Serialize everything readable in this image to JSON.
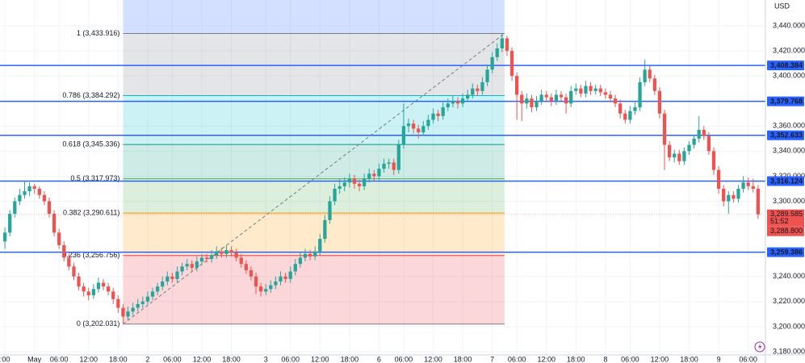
{
  "chart_data": {
    "type": "candlestick",
    "currency": "USD",
    "up_color": "#26a69a",
    "down_color": "#ef5350",
    "grid": true,
    "ylim": [
      3177.4,
      3460.6
    ],
    "yticks": [
      {
        "value": 3440,
        "label": "3,440.000"
      },
      {
        "value": 3420,
        "label": "3,420.000"
      },
      {
        "value": 3400,
        "label": "3,400.000"
      },
      {
        "value": 3360,
        "label": "3,360.000"
      },
      {
        "value": 3340,
        "label": "3,340.000"
      },
      {
        "value": 3320,
        "label": "3,320.000"
      },
      {
        "value": 3300,
        "label": "3,300.000"
      },
      {
        "value": 3240,
        "label": "3,240.000"
      },
      {
        "value": 3220,
        "label": "3,220.000"
      },
      {
        "value": 3200,
        "label": "3,200.000"
      },
      {
        "value": 3180,
        "label": "3,180.000"
      }
    ],
    "xlim": [
      -1,
      154.5
    ],
    "xticks": [
      {
        "value": 0,
        "label": ":00"
      },
      {
        "value": 6,
        "label": "May"
      },
      {
        "value": 11,
        "label": "06:00"
      },
      {
        "value": 17,
        "label": "12:00"
      },
      {
        "value": 23,
        "label": "18:00"
      },
      {
        "value": 29,
        "label": "2"
      },
      {
        "value": 34,
        "label": "06:00"
      },
      {
        "value": 40,
        "label": "12:00"
      },
      {
        "value": 46,
        "label": "18:00"
      },
      {
        "value": 53,
        "label": "3"
      },
      {
        "value": 58,
        "label": "06:00"
      },
      {
        "value": 64,
        "label": "12:00"
      },
      {
        "value": 70,
        "label": "18:00"
      },
      {
        "value": 76,
        "label": "6"
      },
      {
        "value": 81,
        "label": "06:00"
      },
      {
        "value": 87,
        "label": "12:00"
      },
      {
        "value": 93,
        "label": "18:00"
      },
      {
        "value": 99,
        "label": "7"
      },
      {
        "value": 104,
        "label": "06:00"
      },
      {
        "value": 110,
        "label": "12:00"
      },
      {
        "value": 116,
        "label": "18:00"
      },
      {
        "value": 122,
        "label": "8"
      },
      {
        "value": 127,
        "label": "06:00"
      },
      {
        "value": 133,
        "label": "12:00"
      },
      {
        "value": 139,
        "label": "18:00"
      },
      {
        "value": 145,
        "label": "9"
      },
      {
        "value": 151,
        "label": "06:00"
      }
    ],
    "hlines_color": "#2962ff",
    "hlines": [
      {
        "value": 3408.384,
        "label": "3,408.384"
      },
      {
        "value": 3379.768,
        "label": "3,379.768"
      },
      {
        "value": 3352.633,
        "label": "3,352.633"
      },
      {
        "value": 3316.124,
        "label": "3,316.124"
      },
      {
        "value": 3259.386,
        "label": "3,259.386"
      }
    ],
    "last_price": {
      "value": 3289.585,
      "label": "3,289.585"
    },
    "countdown": "51:52",
    "bid": {
      "value": 3288.8,
      "label": "3,288.800"
    },
    "fib": {
      "x": [
        24,
        101
      ],
      "levels": [
        {
          "value": 3433.916,
          "label": "1 (3,433.916)",
          "color": "#787b86"
        },
        {
          "value": 3384.292,
          "label": "0.786 (3,384.292)",
          "color": "#00bcd4"
        },
        {
          "value": 3345.336,
          "label": "0.618 (3,345.336)",
          "color": "#089981"
        },
        {
          "value": 3317.973,
          "label": "0.5 (3,317.973)",
          "color": "#4caf50"
        },
        {
          "value": 3290.611,
          "label": "0.382 (3,290.611)",
          "color": "#ff9800"
        },
        {
          "value": 3256.756,
          "label": "0.236 (3,256.756)",
          "color": "#f23645"
        },
        {
          "value": 3202.031,
          "label": "0 (3,202.031)",
          "color": "#787b86"
        }
      ]
    },
    "ohlc": [
      [
        3268,
        3279,
        3262,
        3275
      ],
      [
        3275,
        3293,
        3272,
        3290
      ],
      [
        3290,
        3303,
        3287,
        3300
      ],
      [
        3300,
        3310,
        3297,
        3305
      ],
      [
        3305,
        3316,
        3302,
        3308
      ],
      [
        3308,
        3315,
        3304,
        3312
      ],
      [
        3312,
        3314,
        3306,
        3310
      ],
      [
        3310,
        3312,
        3302,
        3305
      ],
      [
        3305,
        3308,
        3297,
        3300
      ],
      [
        3300,
        3303,
        3287,
        3290
      ],
      [
        3290,
        3293,
        3272,
        3275
      ],
      [
        3275,
        3278,
        3262,
        3265
      ],
      [
        3265,
        3268,
        3252,
        3255
      ],
      [
        3255,
        3258,
        3245,
        3248
      ],
      [
        3248,
        3251,
        3237,
        3240
      ],
      [
        3240,
        3243,
        3229,
        3232
      ],
      [
        3232,
        3235,
        3224,
        3228
      ],
      [
        3228,
        3231,
        3221,
        3225
      ],
      [
        3225,
        3234,
        3222,
        3230
      ],
      [
        3230,
        3239,
        3227,
        3235
      ],
      [
        3235,
        3238,
        3229,
        3232
      ],
      [
        3232,
        3235,
        3225,
        3228
      ],
      [
        3228,
        3231,
        3218,
        3222
      ],
      [
        3222,
        3225,
        3211,
        3215
      ],
      [
        3215,
        3218,
        3202.031,
        3208
      ],
      [
        3208,
        3216,
        3205,
        3212
      ],
      [
        3212,
        3219,
        3209,
        3215
      ],
      [
        3215,
        3222,
        3212,
        3218
      ],
      [
        3218,
        3224,
        3215,
        3220
      ],
      [
        3220,
        3228,
        3217,
        3224
      ],
      [
        3224,
        3231,
        3221,
        3228
      ],
      [
        3228,
        3235,
        3225,
        3232
      ],
      [
        3232,
        3240,
        3229,
        3236
      ],
      [
        3236,
        3244,
        3233,
        3240
      ],
      [
        3240,
        3243,
        3235,
        3238
      ],
      [
        3238,
        3248,
        3235,
        3244
      ],
      [
        3244,
        3251,
        3241,
        3248
      ],
      [
        3248,
        3254,
        3245,
        3250
      ],
      [
        3250,
        3253,
        3244,
        3247
      ],
      [
        3247,
        3256,
        3244,
        3252
      ],
      [
        3252,
        3258,
        3249,
        3255
      ],
      [
        3255,
        3258,
        3251,
        3254
      ],
      [
        3254,
        3261,
        3251,
        3257
      ],
      [
        3257,
        3264,
        3254,
        3260
      ],
      [
        3260,
        3263,
        3255,
        3258
      ],
      [
        3258,
        3265,
        3255,
        3261
      ],
      [
        3261,
        3264,
        3256,
        3259
      ],
      [
        3259,
        3262,
        3252,
        3255
      ],
      [
        3255,
        3258,
        3247,
        3250
      ],
      [
        3250,
        3253,
        3242,
        3245
      ],
      [
        3245,
        3248,
        3237,
        3240
      ],
      [
        3240,
        3243,
        3226,
        3232
      ],
      [
        3232,
        3235,
        3224,
        3228
      ],
      [
        3228,
        3234,
        3225,
        3230
      ],
      [
        3230,
        3237,
        3227,
        3233
      ],
      [
        3233,
        3240,
        3230,
        3236
      ],
      [
        3236,
        3244,
        3233,
        3240
      ],
      [
        3240,
        3243,
        3235,
        3238
      ],
      [
        3238,
        3248,
        3235,
        3244
      ],
      [
        3244,
        3254,
        3241,
        3250
      ],
      [
        3250,
        3260,
        3247,
        3255
      ],
      [
        3255,
        3262,
        3252,
        3258
      ],
      [
        3258,
        3261,
        3253,
        3256
      ],
      [
        3256,
        3264,
        3253,
        3260
      ],
      [
        3260,
        3274,
        3257,
        3270
      ],
      [
        3270,
        3289,
        3267,
        3285
      ],
      [
        3285,
        3304,
        3282,
        3300
      ],
      [
        3300,
        3314,
        3297,
        3310
      ],
      [
        3310,
        3318,
        3306,
        3312
      ],
      [
        3312,
        3319,
        3308,
        3315
      ],
      [
        3315,
        3322,
        3311,
        3318
      ],
      [
        3318,
        3321,
        3310,
        3314
      ],
      [
        3314,
        3317,
        3308,
        3312
      ],
      [
        3312,
        3322,
        3309,
        3318
      ],
      [
        3318,
        3326,
        3315,
        3322
      ],
      [
        3322,
        3325,
        3316,
        3320
      ],
      [
        3320,
        3330,
        3317,
        3326
      ],
      [
        3326,
        3334,
        3323,
        3330
      ],
      [
        3330,
        3334,
        3326,
        3331
      ],
      [
        3331,
        3334,
        3321,
        3325
      ],
      [
        3325,
        3349,
        3322,
        3345
      ],
      [
        3345,
        3378,
        3342,
        3360
      ],
      [
        3360,
        3366,
        3355,
        3362
      ],
      [
        3362,
        3365,
        3354,
        3358
      ],
      [
        3358,
        3361,
        3350,
        3355
      ],
      [
        3355,
        3364,
        3352,
        3360
      ],
      [
        3360,
        3369,
        3357,
        3365
      ],
      [
        3365,
        3374,
        3362,
        3370
      ],
      [
        3370,
        3373,
        3364,
        3368
      ],
      [
        3368,
        3379,
        3365,
        3375
      ],
      [
        3375,
        3382,
        3372,
        3378
      ],
      [
        3378,
        3384,
        3375,
        3380
      ],
      [
        3380,
        3383,
        3374,
        3378
      ],
      [
        3378,
        3386,
        3375,
        3382
      ],
      [
        3382,
        3389,
        3379,
        3385
      ],
      [
        3385,
        3394,
        3382,
        3390
      ],
      [
        3390,
        3393,
        3384,
        3388
      ],
      [
        3388,
        3399,
        3385,
        3395
      ],
      [
        3395,
        3409,
        3392,
        3405
      ],
      [
        3405,
        3419,
        3402,
        3415
      ],
      [
        3415,
        3426,
        3412,
        3422
      ],
      [
        3422,
        3433.916,
        3419,
        3430
      ],
      [
        3430,
        3432,
        3416,
        3420
      ],
      [
        3420,
        3423,
        3396,
        3400
      ],
      [
        3400,
        3403,
        3365,
        3385
      ],
      [
        3385,
        3388,
        3364,
        3378
      ],
      [
        3378,
        3386,
        3374,
        3382
      ],
      [
        3382,
        3385,
        3371,
        3375
      ],
      [
        3375,
        3384,
        3372,
        3380
      ],
      [
        3380,
        3389,
        3377,
        3385
      ],
      [
        3385,
        3388,
        3379,
        3383
      ],
      [
        3383,
        3386,
        3376,
        3380
      ],
      [
        3380,
        3389,
        3377,
        3385
      ],
      [
        3385,
        3388,
        3380,
        3383
      ],
      [
        3383,
        3386,
        3370,
        3378
      ],
      [
        3378,
        3392,
        3375,
        3388
      ],
      [
        3388,
        3394,
        3385,
        3390
      ],
      [
        3390,
        3393,
        3383,
        3386
      ],
      [
        3386,
        3396,
        3383,
        3392
      ],
      [
        3392,
        3395,
        3385,
        3388
      ],
      [
        3388,
        3393,
        3385,
        3390
      ],
      [
        3390,
        3393,
        3384,
        3387
      ],
      [
        3387,
        3390,
        3382,
        3385
      ],
      [
        3385,
        3388,
        3379,
        3382
      ],
      [
        3382,
        3385,
        3375,
        3378
      ],
      [
        3378,
        3381,
        3366,
        3370
      ],
      [
        3370,
        3373,
        3362,
        3365
      ],
      [
        3365,
        3376,
        3362,
        3372
      ],
      [
        3372,
        3379,
        3369,
        3375
      ],
      [
        3375,
        3399,
        3372,
        3395
      ],
      [
        3395,
        3413,
        3392,
        3405
      ],
      [
        3405,
        3408,
        3395,
        3398
      ],
      [
        3398,
        3401,
        3385,
        3388
      ],
      [
        3388,
        3391,
        3366,
        3370
      ],
      [
        3370,
        3373,
        3325,
        3345
      ],
      [
        3345,
        3348,
        3332,
        3335
      ],
      [
        3335,
        3341,
        3331,
        3338
      ],
      [
        3338,
        3341,
        3329,
        3332
      ],
      [
        3332,
        3343,
        3329,
        3340
      ],
      [
        3340,
        3348,
        3337,
        3345
      ],
      [
        3345,
        3353,
        3342,
        3350
      ],
      [
        3350,
        3368,
        3347,
        3357
      ],
      [
        3357,
        3360,
        3349,
        3352
      ],
      [
        3352,
        3355,
        3337,
        3340
      ],
      [
        3340,
        3343,
        3321,
        3325
      ],
      [
        3325,
        3328,
        3306,
        3310
      ],
      [
        3310,
        3313,
        3296,
        3300
      ],
      [
        3300,
        3308,
        3290,
        3305
      ],
      [
        3305,
        3308,
        3299,
        3302
      ],
      [
        3302,
        3313,
        3299,
        3310
      ],
      [
        3310,
        3320,
        3307,
        3315
      ],
      [
        3315,
        3319,
        3309,
        3312
      ],
      [
        3312,
        3318,
        3307,
        3310
      ],
      [
        3310,
        3313,
        3286,
        3289.585
      ]
    ]
  }
}
